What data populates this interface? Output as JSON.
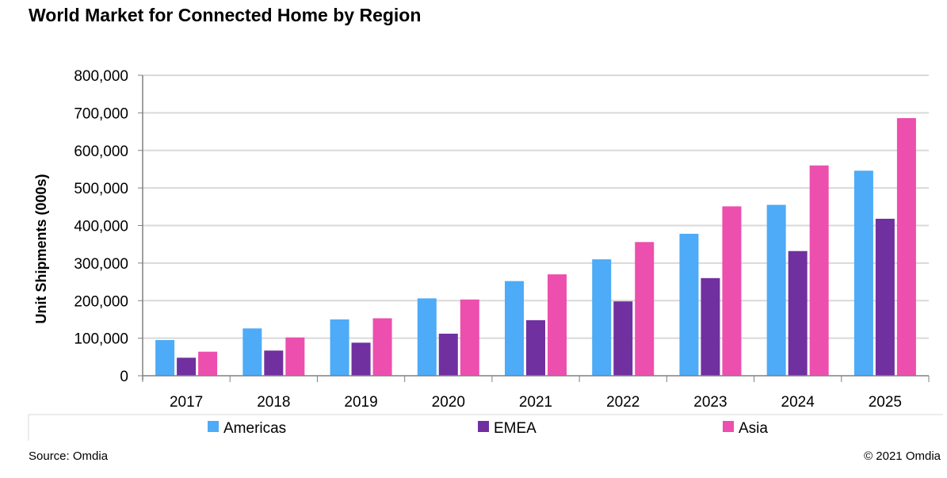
{
  "chart_data": {
    "type": "bar",
    "title": "World Market for Connected Home by Region",
    "xlabel": "",
    "ylabel": "Unit Shipments (000s)",
    "ylim": [
      0,
      800000
    ],
    "yticks": [
      "0",
      "100,000",
      "200,000",
      "300,000",
      "400,000",
      "500,000",
      "600,000",
      "700,000",
      "800,000"
    ],
    "categories": [
      "2017",
      "2018",
      "2019",
      "2020",
      "2021",
      "2022",
      "2023",
      "2024",
      "2025"
    ],
    "series": [
      {
        "name": "Americas",
        "color": "#4dabf7",
        "values": [
          95000,
          126000,
          150000,
          206000,
          252000,
          310000,
          378000,
          455000,
          546000
        ]
      },
      {
        "name": "EMEA",
        "color": "#7030a0",
        "values": [
          48000,
          67000,
          88000,
          112000,
          148000,
          198000,
          260000,
          332000,
          418000
        ]
      },
      {
        "name": "Asia",
        "color": "#ec4fae",
        "values": [
          64000,
          102000,
          153000,
          203000,
          270000,
          356000,
          451000,
          560000,
          686000
        ]
      }
    ],
    "grid": true,
    "legend": "bottom"
  },
  "footer": {
    "source": "Source: Omdia",
    "copyright": "© 2021 Omdia"
  }
}
